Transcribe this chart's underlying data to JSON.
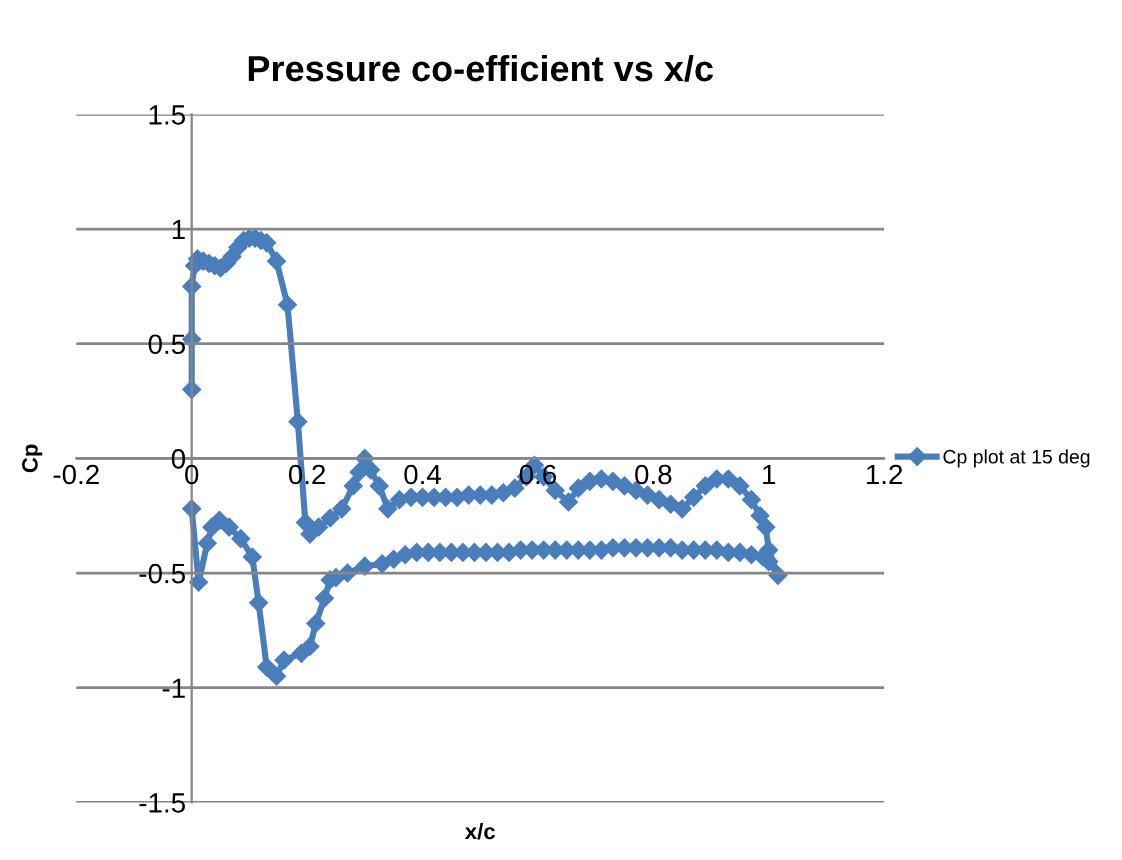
{
  "chart_data": {
    "type": "line",
    "title": "Pressure co-efficient vs x/c",
    "xlabel": "x/c",
    "ylabel": "Cp",
    "xlim": [
      -0.2,
      1.2
    ],
    "xticks": [
      -0.2,
      0,
      0.2,
      0.4,
      0.6,
      0.8,
      1,
      1.2
    ],
    "ylim": [
      -1.5,
      1.5
    ],
    "yticks": [
      -1.5,
      -1,
      -0.5,
      0,
      0.5,
      1,
      1.5
    ],
    "grid": "y",
    "legend": "right",
    "marker": "diamond",
    "line_style": "solid",
    "series": [
      {
        "name": "Cp plot at 15 deg",
        "color": "#4a7ebb",
        "x": [
          0,
          0,
          0,
          0.005,
          0.01,
          0.02,
          0.03,
          0.04,
          0.05,
          0.06,
          0.07,
          0.08,
          0.09,
          0.1,
          0.11,
          0.12,
          0.13,
          0.147,
          0.166,
          0.184,
          0.197,
          0.205,
          0.22,
          0.24,
          0.26,
          0.28,
          0.29,
          0.3,
          0.31,
          0.325,
          0.34,
          0.36,
          0.38,
          0.4,
          0.42,
          0.44,
          0.46,
          0.48,
          0.5,
          0.52,
          0.54,
          0.56,
          0.58,
          0.594,
          0.61,
          0.63,
          0.653,
          0.67,
          0.69,
          0.71,
          0.73,
          0.75,
          0.77,
          0.79,
          0.81,
          0.83,
          0.85,
          0.87,
          0.89,
          0.91,
          0.93,
          0.95,
          0.97,
          0.985,
          0.995,
          1.0,
          1.016,
          1.0,
          0.99,
          0.97,
          0.95,
          0.93,
          0.91,
          0.89,
          0.87,
          0.85,
          0.83,
          0.81,
          0.79,
          0.77,
          0.75,
          0.73,
          0.71,
          0.69,
          0.67,
          0.65,
          0.63,
          0.61,
          0.59,
          0.57,
          0.55,
          0.53,
          0.51,
          0.49,
          0.47,
          0.45,
          0.43,
          0.41,
          0.39,
          0.37,
          0.35,
          0.33,
          0.3,
          0.27,
          0.25,
          0.24,
          0.23,
          0.215,
          0.205,
          0.19,
          0.16,
          0.147,
          0.13,
          0.116,
          0.105,
          0.085,
          0.065,
          0.048,
          0.035,
          0.027,
          0.012,
          0
        ],
        "values": [
          0.3,
          0.52,
          0.75,
          0.84,
          0.87,
          0.86,
          0.85,
          0.84,
          0.83,
          0.85,
          0.88,
          0.92,
          0.95,
          0.96,
          0.96,
          0.95,
          0.94,
          0.86,
          0.67,
          0.16,
          -0.28,
          -0.33,
          -0.3,
          -0.26,
          -0.22,
          -0.12,
          -0.06,
          0.0,
          -0.05,
          -0.12,
          -0.22,
          -0.18,
          -0.17,
          -0.17,
          -0.17,
          -0.17,
          -0.17,
          -0.16,
          -0.16,
          -0.16,
          -0.15,
          -0.13,
          -0.08,
          -0.03,
          -0.08,
          -0.14,
          -0.19,
          -0.13,
          -0.1,
          -0.09,
          -0.1,
          -0.12,
          -0.14,
          -0.16,
          -0.18,
          -0.2,
          -0.22,
          -0.17,
          -0.12,
          -0.09,
          -0.09,
          -0.12,
          -0.18,
          -0.25,
          -0.3,
          -0.4,
          -0.51,
          -0.45,
          -0.43,
          -0.42,
          -0.41,
          -0.41,
          -0.4,
          -0.4,
          -0.4,
          -0.4,
          -0.39,
          -0.39,
          -0.39,
          -0.39,
          -0.39,
          -0.39,
          -0.4,
          -0.4,
          -0.4,
          -0.4,
          -0.4,
          -0.4,
          -0.4,
          -0.4,
          -0.41,
          -0.41,
          -0.41,
          -0.41,
          -0.41,
          -0.41,
          -0.41,
          -0.41,
          -0.41,
          -0.42,
          -0.44,
          -0.46,
          -0.47,
          -0.5,
          -0.52,
          -0.53,
          -0.61,
          -0.72,
          -0.82,
          -0.85,
          -0.88,
          -0.95,
          -0.91,
          -0.63,
          -0.43,
          -0.35,
          -0.3,
          -0.27,
          -0.3,
          -0.37,
          -0.54,
          -0.22
        ]
      }
    ]
  }
}
